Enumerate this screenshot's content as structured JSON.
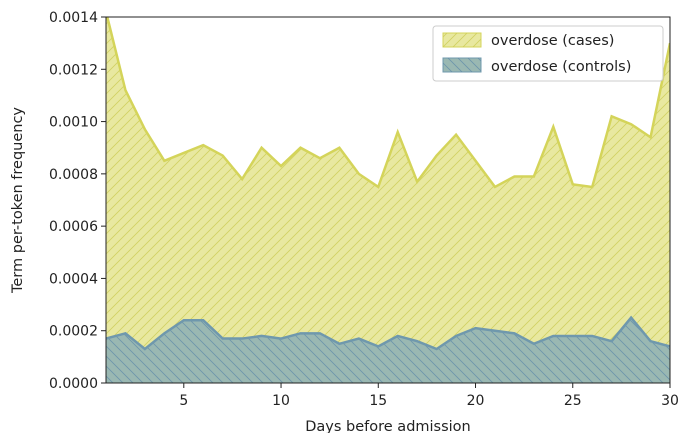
{
  "chart_data": {
    "type": "area",
    "xlabel": "Days before admission",
    "ylabel": "Term per-token frequency",
    "xlim": [
      1,
      30
    ],
    "ylim": [
      0,
      0.0014
    ],
    "xticks": [
      5,
      10,
      15,
      20,
      25,
      30
    ],
    "yticks": [
      0,
      0.0002,
      0.0004,
      0.0006,
      0.0008,
      0.001,
      0.0012,
      0.0014
    ],
    "ytick_labels": [
      "0.0000",
      "0.0002",
      "0.0004",
      "0.0006",
      "0.0008",
      "0.0010",
      "0.0012",
      "0.0014"
    ],
    "grid": false,
    "legend_position": "top-right",
    "x": [
      1,
      2,
      3,
      4,
      5,
      6,
      7,
      8,
      9,
      10,
      11,
      12,
      13,
      14,
      15,
      16,
      17,
      18,
      19,
      20,
      21,
      22,
      23,
      24,
      25,
      26,
      27,
      28,
      29,
      30
    ],
    "series": [
      {
        "name": "overdose (cases)",
        "color": "#d4d45a",
        "fill": "#e8e8a0",
        "values": [
          0.00142,
          0.00112,
          0.00097,
          0.00085,
          0.00088,
          0.00091,
          0.00087,
          0.00078,
          0.0009,
          0.00083,
          0.0009,
          0.00086,
          0.0009,
          0.0008,
          0.00075,
          0.00096,
          0.00077,
          0.00087,
          0.00095,
          0.00085,
          0.00075,
          0.00079,
          0.00079,
          0.00098,
          0.00076,
          0.00075,
          0.00102,
          0.00099,
          0.00094,
          0.0013
        ]
      },
      {
        "name": "overdose (controls)",
        "color": "#6f98ad",
        "fill": "#9ab8b2",
        "values": [
          0.00017,
          0.00019,
          0.00013,
          0.00019,
          0.00024,
          0.00024,
          0.00017,
          0.00017,
          0.00018,
          0.00017,
          0.00019,
          0.00019,
          0.00015,
          0.00017,
          0.00014,
          0.00018,
          0.00016,
          0.00013,
          0.00018,
          0.00021,
          0.0002,
          0.00019,
          0.00015,
          0.00018,
          0.00018,
          0.00018,
          0.00016,
          0.00025,
          0.00016,
          0.00014
        ]
      }
    ]
  }
}
